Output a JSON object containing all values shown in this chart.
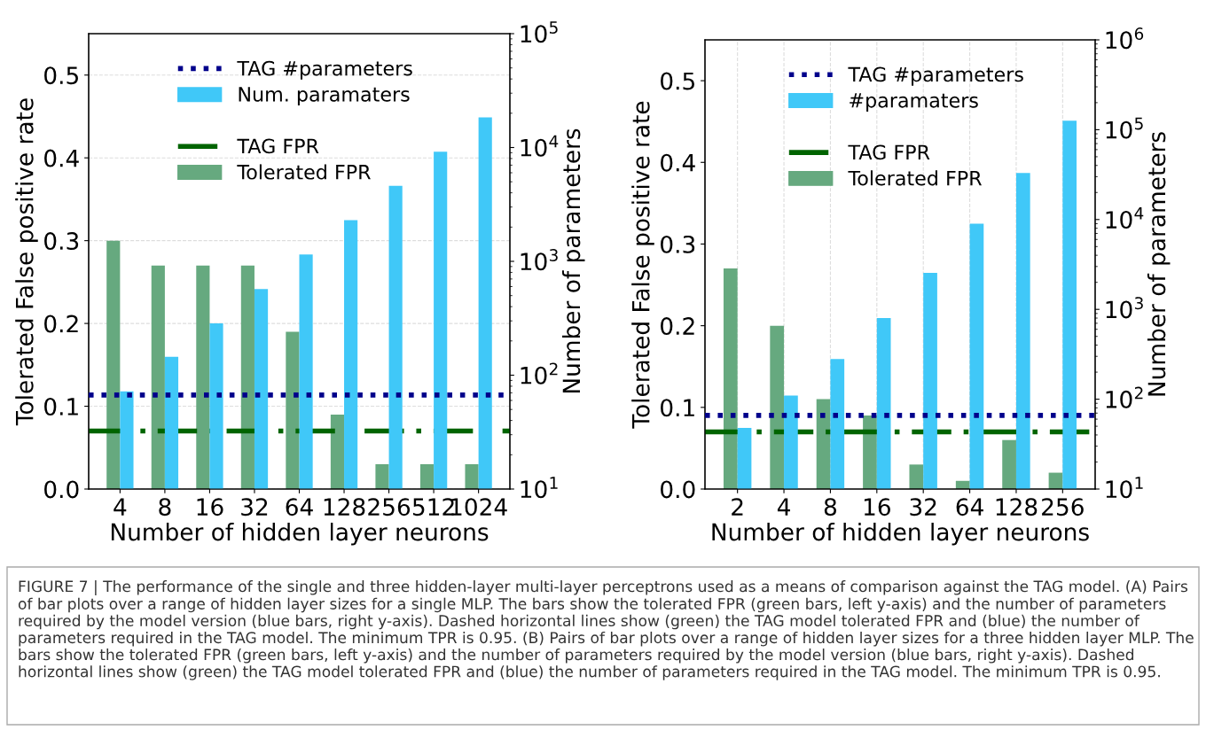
{
  "chart_data": [
    {
      "type": "bar",
      "xlabel": "Number of hidden layer neurons",
      "ylabel": "Tolerated False positive rate",
      "y2label": "Number of parameters",
      "categories": [
        "4",
        "8",
        "16",
        "32",
        "64",
        "128",
        "256",
        "512",
        "1024"
      ],
      "series": [
        {
          "name": "Tolerated FPR",
          "color": "#66a97f",
          "values": [
            0.3,
            0.27,
            0.27,
            0.27,
            0.19,
            0.09,
            0.03,
            0.03,
            0.03
          ]
        },
        {
          "name": "Num. paramaters",
          "color": "#40c8f8",
          "axis": "y2",
          "values": [
            72,
            145,
            285,
            570,
            1150,
            2300,
            4600,
            9200,
            18400
          ]
        }
      ],
      "ref_lines": [
        {
          "axis": "y2",
          "value": 67,
          "label": "TAG #parameters",
          "color": "#00008b",
          "line_style": "dotted"
        },
        {
          "axis": "y",
          "value": 0.07,
          "label": "TAG FPR",
          "color": "#006400",
          "line_style": "dashed"
        }
      ],
      "ylim": [
        0,
        0.55
      ],
      "yticks": [
        {
          "value": 0,
          "label": "0.0"
        },
        0.1,
        0.2,
        0.3,
        0.4,
        0.5
      ],
      "log": "y2",
      "y2lim": [
        10,
        100000
      ],
      "y2ticks": [
        {
          "value": 10,
          "label": "10$^{1}$"
        },
        {
          "value": 100,
          "label": "10$^{2}$"
        },
        {
          "value": 1000,
          "label": "10$^{3}$"
        },
        {
          "value": 10000,
          "label": "10$^{4}$"
        },
        {
          "value": 100000,
          "label": "10$^{5}$"
        }
      ],
      "grid": "y",
      "legend": "top left",
      "annotations": [
        "FIGURE 7 | The performance of the single and three hidden-layer multi-layer perceptrons used as a means of comparison against the TAG model. (A) Pairs of bar plots over a range of hidden layer sizes for a single MLP. The bars show the tolerated FPR (green bars, left y-axis) and the number of parameters required by the model version (blue bars, right y-axis). Dashed horizontal lines show (green) the TAG model tolerated FPR and (blue) the number of parameters required in the TAG model. The minimum TPR is 0.95. (B) Pairs of bar plots over a range of hidden layer sizes for a three hidden layer MLP. The bars show the tolerated FPR (green bars, left y-axis) and the number of parameters required by the model version (blue bars, right y-axis). Dashed horizontal lines show (green) the TAG model tolerated FPR and (blue) the number of parameters required in the TAG model. The minimum TPR is 0.95."
      ]
    },
    {
      "type": "bar",
      "xlabel": "Number of hidden layer neurons",
      "ylabel": "Tolerated False positive rate",
      "y2label": "Number of parameters",
      "categories": [
        "2",
        "4",
        "8",
        "16",
        "32",
        "64",
        "128",
        "256"
      ],
      "series": [
        {
          "name": "Tolerated FPR",
          "color": "#66a97f",
          "values": [
            0.27,
            0.2,
            0.11,
            0.09,
            0.03,
            0.01,
            0.06,
            0.02
          ]
        },
        {
          "name": "#paramaters",
          "color": "#40c8f8",
          "axis": "y2",
          "values": [
            48,
            110,
            280,
            800,
            2550,
            9000,
            33000,
            126000
          ]
        }
      ],
      "ref_lines": [
        {
          "axis": "y2",
          "value": 66,
          "label": "TAG #parameters",
          "color": "#00008b",
          "line_style": "dotted"
        },
        {
          "axis": "y",
          "value": 0.07,
          "label": "TAG FPR",
          "color": "#006400",
          "line_style": "dashed"
        }
      ],
      "ylim": [
        0,
        0.55
      ],
      "yticks": [
        {
          "value": 0,
          "label": "0.0"
        },
        0.1,
        0.2,
        0.3,
        0.4,
        0.5
      ],
      "log": "y2",
      "y2lim": [
        10,
        1000000
      ],
      "y2ticks": [
        {
          "value": 10,
          "label": "10$^{1}$"
        },
        {
          "value": 100,
          "label": "10$^{2}$"
        },
        {
          "value": 1000,
          "label": "10$^{3}$"
        },
        {
          "value": 10000,
          "label": "10$^{4}$"
        },
        {
          "value": 100000,
          "label": "10$^{5}$"
        },
        {
          "value": 1000000,
          "label": "10$^{6}$"
        }
      ],
      "grid": "x",
      "legend": "top left"
    }
  ]
}
